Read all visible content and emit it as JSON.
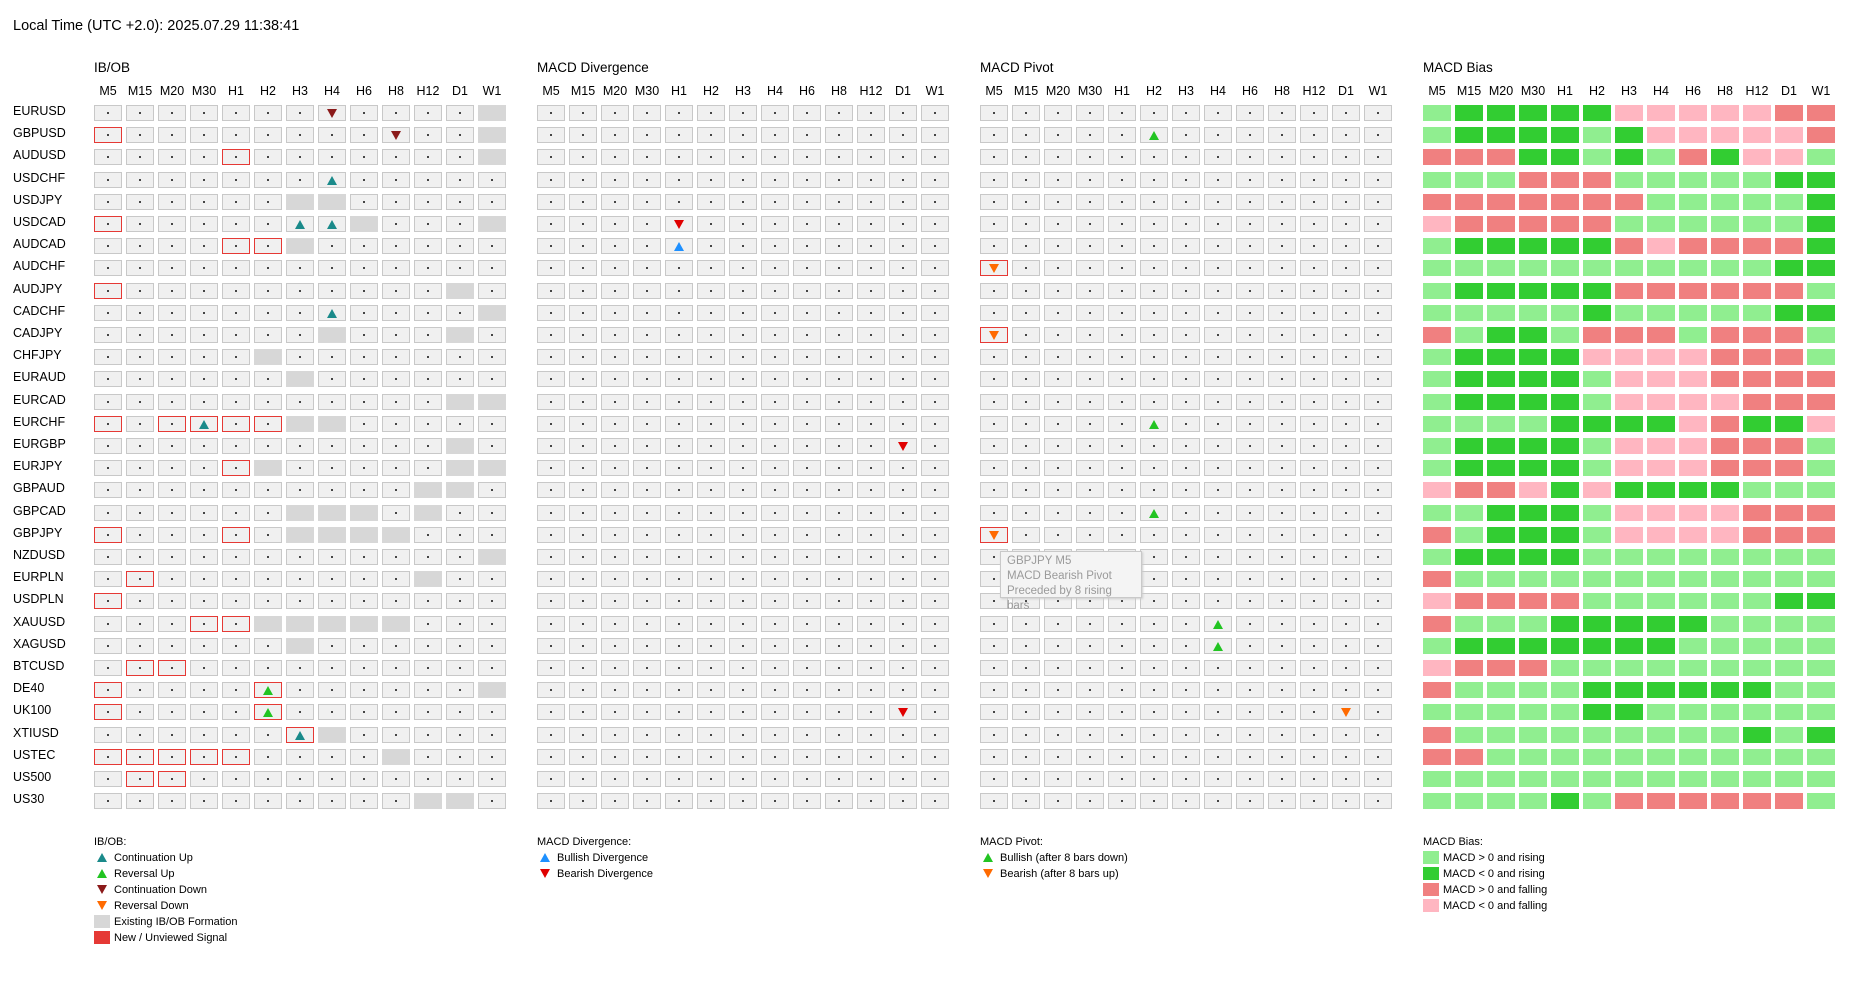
{
  "header": {
    "local_time": "Local Time (UTC +2.0): 2025.07.29 11:38:41"
  },
  "timeframes": [
    "M5",
    "M15",
    "M20",
    "M30",
    "H1",
    "H2",
    "H3",
    "H4",
    "H6",
    "H8",
    "H12",
    "D1",
    "W1"
  ],
  "pairs": [
    "EURUSD",
    "GBPUSD",
    "AUDUSD",
    "USDCHF",
    "USDJPY",
    "USDCAD",
    "AUDCAD",
    "AUDCHF",
    "AUDJPY",
    "CADCHF",
    "CADJPY",
    "CHFJPY",
    "EURAUD",
    "EURCAD",
    "EURCHF",
    "EURGBP",
    "EURJPY",
    "GBPAUD",
    "GBPCAD",
    "GBPJPY",
    "NZDUSD",
    "EURPLN",
    "USDPLN",
    "XAUUSD",
    "XAGUSD",
    "BTCUSD",
    "DE40",
    "UK100",
    "XTIUSD",
    "USTEC",
    "US500",
    "US30"
  ],
  "panels": [
    {
      "title": "IB/OB"
    },
    {
      "title": "MACD Divergence"
    },
    {
      "title": "MACD Pivot"
    },
    {
      "title": "MACD Bias"
    }
  ],
  "grid_codes": {
    "ibob": [
      ".......D....E",
      "N........D..E",
      "....N.......E",
      ".......u.....",
      "......EE.....",
      "N.....uuE...E",
      "....NNE......",
      ".............",
      "N..........E.",
      ".......u....E",
      ".......E...E.",
      ".....E.......",
      "......E......",
      "...........EE",
      "N.NUNNEE.....",
      "...........E.",
      "....NE.....EE",
      "..........EE.",
      "......EEE.E..",
      "N...N.EEEE...",
      "............E",
      ".N........E..",
      "N............",
      "...NNEEEEE...",
      "......E......",
      ".NN..........",
      "N....U......E",
      "N....U.......",
      "......UE.....",
      "NNNNN....E...",
      ".NN..........",
      "..........EE."
    ],
    "div": [
      ".............",
      ".............",
      ".............",
      ".............",
      ".............",
      "....v........",
      "....b........",
      ".............",
      ".............",
      ".............",
      ".............",
      ".............",
      ".............",
      ".............",
      ".............",
      "...........v.",
      ".............",
      ".............",
      ".............",
      ".............",
      ".............",
      ".............",
      ".............",
      ".............",
      ".............",
      ".............",
      ".............",
      "...........v.",
      ".............",
      ".............",
      ".............",
      "............."
    ],
    "pivot": [
      ".............",
      ".....u.......",
      ".............",
      ".............",
      ".............",
      ".............",
      ".............",
      "P............",
      ".............",
      ".............",
      "P............",
      ".............",
      ".............",
      ".............",
      ".....u.......",
      ".............",
      ".............",
      ".............",
      ".....u.......",
      "P............",
      ".............",
      ".............",
      ".............",
      ".......u.....",
      ".......u.....",
      ".............",
      ".............",
      "...........d.",
      ".............",
      ".............",
      ".............",
      "............."
    ],
    "bias": [
      "LGGGGGPPPPPRR",
      "LGGGGLGPPPPPR",
      "RRRGGLGLRGPPL",
      "LLLRRRLLLLLGG",
      "RRRRRRRLLLLLG",
      "PRRRRRLLLLLLG",
      "LGGGGGRPRRRRG",
      "LLLLLLLLLLLGG",
      "LGGGGGRRRRRRL",
      "LLLLLGLLLLLGG",
      "RLGGLRRRLRRRL",
      "LGGGGPPPPRRRL",
      "LGGGGLPPPRRRR",
      "LGGGGLPPPPRRR",
      "LLLLGGGGPRGGP",
      "LGGGGLPPPRRRL",
      "LGGGGLPPPRRRL",
      "PRRPGPGGGGLLL",
      "LLGGGLPPPPRRR",
      "RLGGGLPPPPRRR",
      "LGGGGLLLLLLLL",
      "RLLLLLLLLLLLL",
      "PRRRRLLLLLLGG",
      "RLLLGGGGGLLLL",
      "LGGGGGGGLLLLL",
      "PRRRLLLLLLLLL",
      "RLLLLGGGGGGLL",
      "LLLLLGGLLLLLL",
      "RLLLLLLLLLGLG",
      "RRLLLLLLLLLLL",
      "LLLLLLLLLLLLL",
      "LLLLGLRRRRRRL"
    ]
  },
  "tooltip": {
    "line1": "GBPJPY M5",
    "line2": "MACD Bearish Pivot",
    "line3": "Preceded by 8 rising bars"
  },
  "legend": {
    "ibob": {
      "title": "IB/OB:",
      "items": [
        "Continuation Up",
        "Reversal Up",
        "Continuation Down",
        "Reversal Down",
        "Existing IB/OB Formation",
        "New / Unviewed Signal"
      ]
    },
    "div": {
      "title": "MACD Divergence:",
      "items": [
        "Bullish Divergence",
        "Bearish Divergence"
      ]
    },
    "pivot": {
      "title": "MACD Pivot:",
      "items": [
        "Bullish (after 8 bars down)",
        "Bearish (after 8 bars up)"
      ]
    },
    "bias": {
      "title": "MACD Bias:",
      "items": [
        "MACD > 0 and rising",
        "MACD < 0 and rising",
        "MACD > 0 and falling",
        "MACD < 0 and falling"
      ]
    }
  },
  "colors": {
    "continuation_up": "#1a8a8a",
    "reversal_up": "#22c422",
    "continuation_down": "#8b1a1a",
    "reversal_down": "#ff6a00",
    "bullish_divergence": "#1e90ff",
    "bearish_divergence": "#e00000",
    "existing_formation": "#d7d7d7",
    "new_signal": "#e53935",
    "bias_pos_rising": "#90ee90",
    "bias_neg_rising": "#32cd32",
    "bias_pos_falling": "#f08080",
    "bias_neg_falling": "#ffb6c1"
  }
}
